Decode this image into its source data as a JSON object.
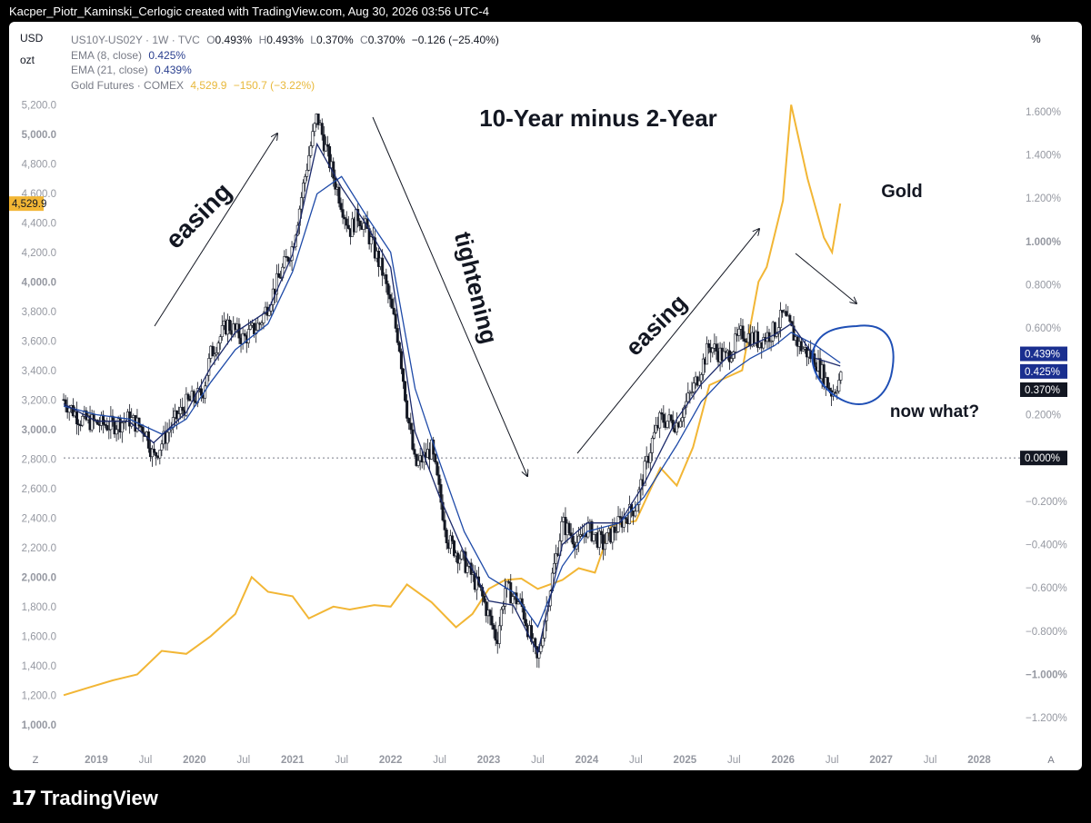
{
  "header": {
    "text": "Kacper_Piotr_Kaminski_Cerlogic created with TradingView.com, Aug 30, 2026 03:56 UTC-4"
  },
  "units": {
    "currency": "USD",
    "unit": "ozt",
    "percent": "%"
  },
  "legend": {
    "symbol": "US10Y-US02Y · 1W · TVC",
    "o_label": "O",
    "o": "0.493%",
    "h_label": "H",
    "h": "0.493%",
    "l_label": "L",
    "l": "0.370%",
    "c_label": "C",
    "c": "0.370%",
    "change": "−0.126 (−25.40%)",
    "ema8_label": "EMA (8, close)",
    "ema8": "0.425%",
    "ema21_label": "EMA (21, close)",
    "ema21": "0.439%",
    "gold_label": "Gold Futures · COMEX",
    "gold_value": "4,529.9",
    "gold_change": "−150.7 (−3.22%)"
  },
  "footer": {
    "brand": "TradingView"
  },
  "colors": {
    "gold": "#f2b635",
    "ema8": "#1c2a6b",
    "ema21": "#1e4aa8",
    "candle": "#131722",
    "annotation": "#131722",
    "circle": "#1f4fb5"
  },
  "chart_data": {
    "type": "line",
    "title": "10-Year minus 2-Year",
    "x_range": [
      "2018-09",
      "2028-06"
    ],
    "x_ticks": [
      {
        "t": "2019-01",
        "label": "2019",
        "major": true
      },
      {
        "t": "2019-07",
        "label": "Jul"
      },
      {
        "t": "2020-01",
        "label": "2020",
        "major": true
      },
      {
        "t": "2020-07",
        "label": "Jul"
      },
      {
        "t": "2021-01",
        "label": "2021",
        "major": true
      },
      {
        "t": "2021-07",
        "label": "Jul"
      },
      {
        "t": "2022-01",
        "label": "2022",
        "major": true
      },
      {
        "t": "2022-07",
        "label": "Jul"
      },
      {
        "t": "2023-01",
        "label": "2023",
        "major": true
      },
      {
        "t": "2023-07",
        "label": "Jul"
      },
      {
        "t": "2024-01",
        "label": "2024",
        "major": true
      },
      {
        "t": "2024-07",
        "label": "Jul"
      },
      {
        "t": "2025-01",
        "label": "2025",
        "major": true
      },
      {
        "t": "2025-07",
        "label": "Jul"
      },
      {
        "t": "2026-01",
        "label": "2026",
        "major": true
      },
      {
        "t": "2026-07",
        "label": "Jul"
      },
      {
        "t": "2027-01",
        "label": "2027",
        "major": true
      },
      {
        "t": "2027-07",
        "label": "Jul"
      },
      {
        "t": "2028-01",
        "label": "2028",
        "major": true
      }
    ],
    "x_corner_left": "Z",
    "x_corner_right": "A",
    "left_axis": {
      "ylim": [
        900,
        5300
      ],
      "ticks": [
        "1,000.0",
        "1,200.0",
        "1,400.0",
        "1,600.0",
        "1,800.0",
        "2,000.0",
        "2,200.0",
        "2,400.0",
        "2,600.0",
        "2,800.0",
        "3,000.0",
        "3,200.0",
        "3,400.0",
        "3,600.0",
        "3,800.0",
        "4,000.0",
        "4,200.0",
        "4,400.0",
        "4,600.0",
        "4,800.0",
        "5,000.0",
        "5,200.0"
      ],
      "tick_values": [
        1000,
        1200,
        1400,
        1600,
        1800,
        2000,
        2200,
        2400,
        2600,
        2800,
        3000,
        3200,
        3400,
        3600,
        3800,
        4000,
        4200,
        4400,
        4600,
        4800,
        5000,
        5200
      ],
      "bold": [
        "1,000.0",
        "2,000.0",
        "3,000.0",
        "4,000.0",
        "5,000.0"
      ],
      "badge": {
        "label": "4,529.9",
        "value": 4529.9
      }
    },
    "right_axis": {
      "ylim": [
        -1.3,
        1.7
      ],
      "ticks": [
        "−1.200%",
        "−1.000%",
        "−0.800%",
        "−0.600%",
        "−0.400%",
        "−0.200%",
        "0.000%",
        "0.200%",
        "0.400%",
        "0.600%",
        "0.800%",
        "1.000%",
        "1.200%",
        "1.400%",
        "1.600%"
      ],
      "tick_values": [
        -1.2,
        -1.0,
        -0.8,
        -0.6,
        -0.4,
        -0.2,
        0.0,
        0.2,
        0.4,
        0.6,
        0.8,
        1.0,
        1.2,
        1.4,
        1.6
      ],
      "bold": [
        "−1.000%",
        "1.000%"
      ],
      "badges": [
        {
          "label": "0.439%",
          "value": 0.439,
          "kind": "ema21"
        },
        {
          "label": "0.425%",
          "value": 0.425,
          "kind": "ema8"
        },
        {
          "label": "0.370%",
          "value": 0.37,
          "kind": "close"
        },
        {
          "label": "0.000%",
          "value": 0.0,
          "kind": "zero"
        }
      ]
    },
    "series": [
      {
        "name": "US10Y-US02Y · 1W · TVC",
        "axis": "right",
        "style": "candles",
        "x": [
          "2018-09",
          "2018-11",
          "2019-01",
          "2019-03",
          "2019-05",
          "2019-07",
          "2019-08",
          "2019-10",
          "2019-12",
          "2020-02",
          "2020-03",
          "2020-05",
          "2020-07",
          "2020-09",
          "2020-11",
          "2021-01",
          "2021-03",
          "2021-04",
          "2021-06",
          "2021-08",
          "2021-09",
          "2021-10",
          "2021-12",
          "2022-02",
          "2022-03",
          "2022-04",
          "2022-06",
          "2022-08",
          "2022-10",
          "2022-12",
          "2023-02",
          "2023-03",
          "2023-05",
          "2023-07",
          "2023-08",
          "2023-10",
          "2023-12",
          "2024-01",
          "2024-03",
          "2024-05",
          "2024-07",
          "2024-09",
          "2024-10",
          "2024-12",
          "2025-02",
          "2025-04",
          "2025-06",
          "2025-08",
          "2025-10",
          "2025-12",
          "2026-01",
          "2026-03",
          "2026-05",
          "2026-07",
          "2026-08"
        ],
        "y": [
          0.27,
          0.18,
          0.16,
          0.15,
          0.18,
          0.13,
          0.0,
          0.14,
          0.25,
          0.3,
          0.48,
          0.62,
          0.55,
          0.62,
          0.8,
          0.98,
          1.4,
          1.58,
          1.3,
          1.05,
          1.12,
          1.06,
          0.86,
          0.54,
          0.22,
          -0.04,
          0.04,
          -0.38,
          -0.48,
          -0.62,
          -0.84,
          -0.6,
          -0.68,
          -0.95,
          -0.7,
          -0.3,
          -0.4,
          -0.32,
          -0.4,
          -0.3,
          -0.22,
          0.08,
          0.18,
          0.16,
          0.32,
          0.52,
          0.46,
          0.58,
          0.54,
          0.59,
          0.66,
          0.52,
          0.45,
          0.3,
          0.37
        ]
      },
      {
        "name": "EMA (8, close)",
        "axis": "right",
        "style": "line",
        "x": [
          "2018-09",
          "2019-01",
          "2019-05",
          "2019-08",
          "2019-12",
          "2020-03",
          "2020-06",
          "2020-10",
          "2021-01",
          "2021-04",
          "2021-07",
          "2021-10",
          "2022-01",
          "2022-04",
          "2022-07",
          "2022-10",
          "2023-01",
          "2023-04",
          "2023-07",
          "2023-10",
          "2024-01",
          "2024-05",
          "2024-08",
          "2024-12",
          "2025-03",
          "2025-06",
          "2025-09",
          "2025-12",
          "2026-02",
          "2026-05",
          "2026-08"
        ],
        "y": [
          0.25,
          0.17,
          0.17,
          0.07,
          0.21,
          0.42,
          0.58,
          0.68,
          0.94,
          1.45,
          1.25,
          1.08,
          0.88,
          0.12,
          -0.18,
          -0.44,
          -0.66,
          -0.68,
          -0.9,
          -0.4,
          -0.3,
          -0.3,
          -0.12,
          0.18,
          0.34,
          0.46,
          0.52,
          0.57,
          0.62,
          0.46,
          0.425
        ]
      },
      {
        "name": "EMA (21, close)",
        "axis": "right",
        "style": "line",
        "x": [
          "2018-09",
          "2019-01",
          "2019-05",
          "2019-09",
          "2019-12",
          "2020-03",
          "2020-06",
          "2020-10",
          "2021-01",
          "2021-04",
          "2021-07",
          "2021-10",
          "2022-01",
          "2022-04",
          "2022-07",
          "2022-10",
          "2023-01",
          "2023-04",
          "2023-07",
          "2023-10",
          "2024-01",
          "2024-05",
          "2024-08",
          "2024-12",
          "2025-03",
          "2025-06",
          "2025-09",
          "2025-12",
          "2026-02",
          "2026-05",
          "2026-08"
        ],
        "y": [
          0.24,
          0.2,
          0.18,
          0.11,
          0.18,
          0.35,
          0.5,
          0.62,
          0.86,
          1.22,
          1.3,
          1.12,
          0.95,
          0.32,
          -0.02,
          -0.34,
          -0.55,
          -0.62,
          -0.78,
          -0.5,
          -0.34,
          -0.3,
          -0.18,
          0.06,
          0.26,
          0.38,
          0.46,
          0.52,
          0.58,
          0.52,
          0.439
        ]
      },
      {
        "name": "Gold Futures · COMEX",
        "axis": "left",
        "style": "line",
        "x": [
          "2018-09",
          "2018-12",
          "2019-03",
          "2019-06",
          "2019-09",
          "2019-12",
          "2020-03",
          "2020-06",
          "2020-08",
          "2020-10",
          "2021-01",
          "2021-03",
          "2021-06",
          "2021-08",
          "2021-11",
          "2022-01",
          "2022-03",
          "2022-06",
          "2022-09",
          "2022-11",
          "2023-01",
          "2023-03",
          "2023-05",
          "2023-07",
          "2023-10",
          "2023-12",
          "2024-02",
          "2024-04",
          "2024-07",
          "2024-10",
          "2024-12",
          "2025-02",
          "2025-04",
          "2025-06",
          "2025-08",
          "2025-10",
          "2025-11",
          "2026-01",
          "2026-02",
          "2026-04",
          "2026-06",
          "2026-07",
          "2026-08"
        ],
        "y": [
          1200,
          1250,
          1300,
          1340,
          1500,
          1480,
          1600,
          1750,
          2000,
          1900,
          1870,
          1720,
          1800,
          1780,
          1810,
          1800,
          1950,
          1830,
          1660,
          1750,
          1920,
          1980,
          1990,
          1920,
          1980,
          2060,
          2030,
          2350,
          2380,
          2740,
          2620,
          2880,
          3300,
          3350,
          3400,
          4000,
          4100,
          4550,
          5200,
          4700,
          4300,
          4200,
          4529.9
        ]
      }
    ],
    "annotations": [
      {
        "text": "easing",
        "rotation": -45
      },
      {
        "text": "tightening",
        "rotation": 76
      },
      {
        "text": "easing",
        "rotation": -45
      },
      {
        "text": "Gold",
        "rotation": 0
      },
      {
        "text": "now what?",
        "rotation": 0
      }
    ]
  }
}
